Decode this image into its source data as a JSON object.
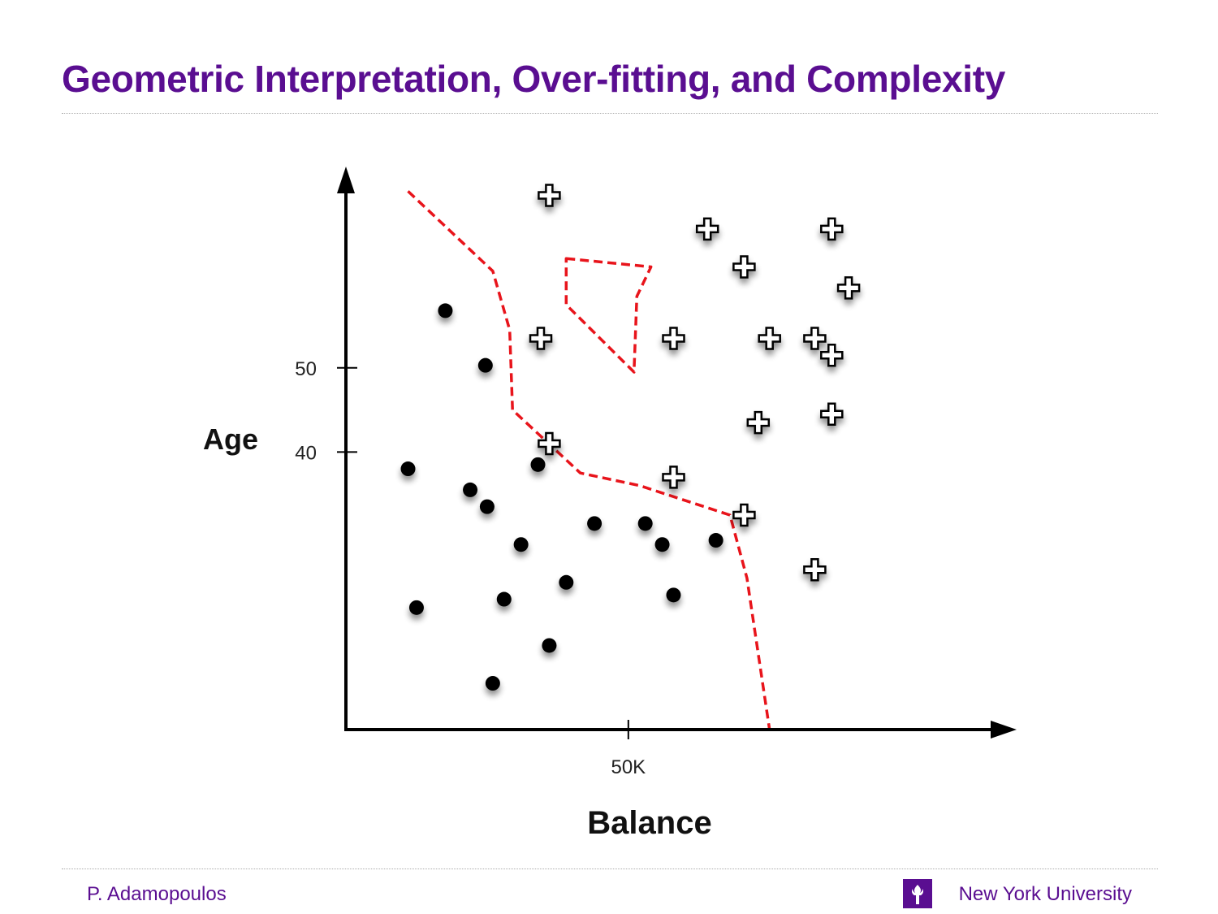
{
  "slide": {
    "title": "Geometric Interpretation, Over-fitting, and Complexity",
    "author": "P. Adamopoulos",
    "organization": "New York University",
    "title_color": "#5a0e91",
    "logo_icon": "nyu-torch-icon"
  },
  "chart_data": {
    "type": "scatter",
    "xlabel": "Balance",
    "ylabel": "Age",
    "x_ticks": [
      {
        "value": 50,
        "label": "50K"
      }
    ],
    "y_ticks": [
      {
        "value": 50,
        "label": "50"
      },
      {
        "value": 40,
        "label": "40"
      }
    ],
    "xlim": [
      0,
      115
    ],
    "ylim": [
      7,
      72
    ],
    "grid": false,
    "series": [
      {
        "marker": "dot",
        "color": "#000000",
        "points": [
          [
            17.6,
            56.8
          ],
          [
            24.7,
            50.3
          ],
          [
            11,
            38
          ],
          [
            22,
            35.5
          ],
          [
            25,
            33.5
          ],
          [
            34,
            38.5
          ],
          [
            44,
            31.5
          ],
          [
            53,
            31.5
          ],
          [
            31,
            29
          ],
          [
            39,
            24.5
          ],
          [
            28,
            22.5
          ],
          [
            12.5,
            21.5
          ],
          [
            36,
            17
          ],
          [
            56,
            29
          ],
          [
            65.5,
            29.5
          ],
          [
            58,
            23
          ],
          [
            26,
            12.5
          ]
        ]
      },
      {
        "marker": "plus",
        "color": "#000000",
        "points": [
          [
            36,
            70.5
          ],
          [
            64,
            66.5
          ],
          [
            86,
            66.5
          ],
          [
            70.5,
            62
          ],
          [
            89,
            59.5
          ],
          [
            34.5,
            53.5
          ],
          [
            58,
            53.5
          ],
          [
            75,
            53.5
          ],
          [
            83,
            53.5
          ],
          [
            86,
            51.5
          ],
          [
            86,
            44.5
          ],
          [
            73,
            43.5
          ],
          [
            36,
            41
          ],
          [
            58,
            37
          ],
          [
            70.5,
            32.5
          ],
          [
            83,
            26
          ]
        ]
      }
    ],
    "boundaries": [
      {
        "style": "dashed",
        "color": "#e8141b",
        "points": [
          [
            11,
            71
          ],
          [
            26,
            61.5
          ],
          [
            29,
            54.5
          ],
          [
            29.5,
            45
          ],
          [
            41.5,
            37.5
          ],
          [
            52,
            36
          ],
          [
            68,
            32.5
          ],
          [
            71,
            25
          ],
          [
            75,
            7
          ]
        ]
      },
      {
        "style": "dashed",
        "color": "#e8141b",
        "closed": true,
        "points": [
          [
            39,
            63
          ],
          [
            54,
            62
          ],
          [
            51.5,
            58.5
          ],
          [
            51,
            49.5
          ],
          [
            39,
            57.5
          ]
        ]
      }
    ]
  }
}
